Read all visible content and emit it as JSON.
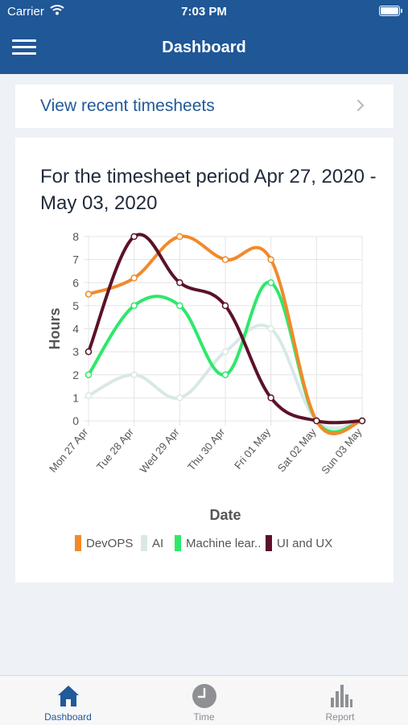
{
  "status_bar": {
    "carrier": "Carrier",
    "time": "7:03 PM"
  },
  "nav": {
    "title": "Dashboard",
    "menu_icon": "hamburger-icon"
  },
  "recent": {
    "label": "View recent timesheets",
    "icon": "chevron-right-icon"
  },
  "chart_title": "For the timesheet period Apr 27, 2020 - May 03, 2020",
  "chart_data": {
    "type": "line",
    "xlabel": "Date",
    "ylabel": "Hours",
    "ylim": [
      0,
      8
    ],
    "yticks": [
      "0",
      "1",
      "2",
      "3",
      "4",
      "5",
      "6",
      "7",
      "8"
    ],
    "categories": [
      "Mon 27 Apr",
      "Tue 28 Apr",
      "Wed 29 Apr",
      "Thu 30 Apr",
      "Fri 01 May",
      "Sat 02 May",
      "Sun 03 May"
    ],
    "grid": true,
    "legend_position": "bottom",
    "series": [
      {
        "name": "DevOPS",
        "color": "#f18a2b",
        "values": [
          5.5,
          6.2,
          8,
          7,
          7,
          0,
          0
        ]
      },
      {
        "name": "AI",
        "color": "#d9e8e7",
        "values": [
          1.1,
          2,
          1,
          3,
          4,
          0,
          0
        ]
      },
      {
        "name": "Machine lear..",
        "color": "#2ee86b",
        "values": [
          2,
          5,
          5,
          2,
          6,
          0,
          0
        ]
      },
      {
        "name": "UI and UX",
        "color": "#5b1228",
        "values": [
          3,
          8,
          6,
          5,
          1,
          0,
          0
        ]
      }
    ]
  },
  "tabs": [
    {
      "label": "Dashboard",
      "icon": "home-icon",
      "active": true
    },
    {
      "label": "Time",
      "icon": "clock-icon",
      "active": false
    },
    {
      "label": "Report",
      "icon": "bar-chart-icon",
      "active": false
    }
  ]
}
